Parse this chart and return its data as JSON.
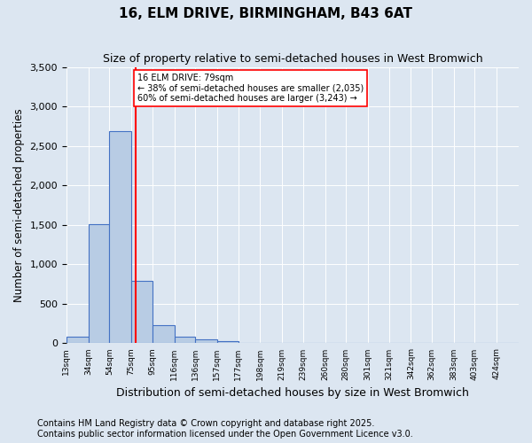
{
  "title": "16, ELM DRIVE, BIRMINGHAM, B43 6AT",
  "subtitle": "Size of property relative to semi-detached houses in West Bromwich",
  "xlabel": "Distribution of semi-detached houses by size in West Bromwich",
  "ylabel": "Number of semi-detached properties",
  "property_size": 79,
  "property_label": "16 ELM DRIVE: 79sqm",
  "annotation_line1": "← 38% of semi-detached houses are smaller (2,035)",
  "annotation_line2": "60% of semi-detached houses are larger (3,243) →",
  "bar_color": "#b8cce4",
  "bar_edge_color": "#4472c4",
  "vline_color": "red",
  "background_color": "#dce6f1",
  "tick_labels": [
    "13sqm",
    "34sqm",
    "54sqm",
    "75sqm",
    "95sqm",
    "116sqm",
    "136sqm",
    "157sqm",
    "177sqm",
    "198sqm",
    "219sqm",
    "239sqm",
    "260sqm",
    "280sqm",
    "301sqm",
    "321sqm",
    "342sqm",
    "362sqm",
    "383sqm",
    "403sqm",
    "424sqm"
  ],
  "bin_edges": [
    13,
    34,
    54,
    75,
    95,
    116,
    136,
    157,
    177,
    198,
    219,
    239,
    260,
    280,
    301,
    321,
    342,
    362,
    383,
    403,
    424,
    445
  ],
  "bar_heights": [
    80,
    1510,
    2690,
    790,
    230,
    80,
    50,
    30,
    10,
    5,
    5,
    5,
    5,
    5,
    2,
    2,
    2,
    2,
    2,
    2,
    0
  ],
  "ylim": [
    0,
    3500
  ],
  "yticks": [
    0,
    500,
    1000,
    1500,
    2000,
    2500,
    3000,
    3500
  ],
  "footer_line1": "Contains HM Land Registry data © Crown copyright and database right 2025.",
  "footer_line2": "Contains public sector information licensed under the Open Government Licence v3.0.",
  "title_fontsize": 11,
  "subtitle_fontsize": 9,
  "xlabel_fontsize": 9,
  "ylabel_fontsize": 8.5,
  "footer_fontsize": 7
}
